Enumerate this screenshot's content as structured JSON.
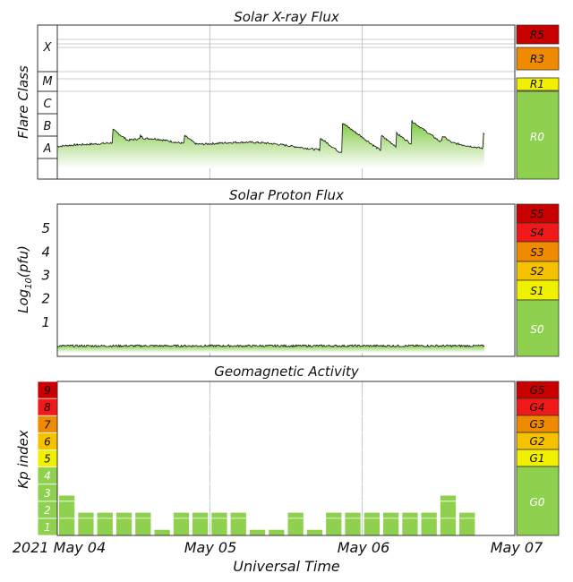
{
  "colors": {
    "green": "#8fd14f",
    "green_light": "#c8eaa6",
    "yellow": "#f0f000",
    "amber": "#f5c200",
    "orange": "#f08a00",
    "red": "#f01818",
    "darkred": "#c80000",
    "grid": "#b8b8b8",
    "frame": "#333333"
  },
  "chart_data": [
    {
      "id": "xray",
      "type": "area",
      "title": "Solar X-ray Flux",
      "ylabel": "Flare Class",
      "class_labels": [
        "X",
        "M",
        "C",
        "B",
        "A"
      ],
      "y_scale": "log10 (W/m²)",
      "ylim": [
        -8.6,
        -2.3
      ],
      "x_range_days": [
        0,
        3
      ],
      "x_data_end": 2.8,
      "baseline": -7.37,
      "events": [
        {
          "t": 0.37,
          "peak": -6.6
        },
        {
          "t": 0.55,
          "peak": -6.85
        },
        {
          "t": 0.84,
          "peak": -6.85
        },
        {
          "t": 1.73,
          "peak": -6.95
        },
        {
          "t": 1.88,
          "peak": -6.35
        },
        {
          "t": 2.13,
          "peak": -6.85
        },
        {
          "t": 2.23,
          "peak": -6.75
        },
        {
          "t": 2.33,
          "peak": -6.25
        },
        {
          "t": 2.38,
          "peak": -6.65
        },
        {
          "t": 2.53,
          "peak": -6.85
        },
        {
          "t": 2.8,
          "peak": -6.75
        }
      ],
      "scale": {
        "items": [
          {
            "label": "R5",
            "color": "#c80000"
          },
          {
            "label": "R3",
            "color": "#f08a00"
          },
          {
            "label": "R1",
            "color": "#f0f000"
          },
          {
            "label": "R0",
            "color": "#8fd14f"
          }
        ]
      }
    },
    {
      "id": "proton",
      "type": "area",
      "title": "Solar Proton Flux",
      "ylabel_main": "Log",
      "ylabel_sub": "10",
      "ylabel_unit": "(pfu)",
      "yticks": [
        1,
        2,
        3,
        4,
        5
      ],
      "ylim": [
        -0.5,
        6
      ],
      "x_range_days": [
        0,
        3
      ],
      "x_data_end": 2.8,
      "level": -0.05,
      "scale": {
        "items": [
          {
            "label": "S5",
            "color": "#c80000"
          },
          {
            "label": "S4",
            "color": "#f01818"
          },
          {
            "label": "S3",
            "color": "#f08a00"
          },
          {
            "label": "S2",
            "color": "#f5c200"
          },
          {
            "label": "S1",
            "color": "#f0f000"
          },
          {
            "label": "S0",
            "color": "#8fd14f"
          }
        ]
      }
    },
    {
      "id": "kp",
      "type": "bar",
      "title": "Geomagnetic Activity",
      "ylabel": "Kp index",
      "ylim": [
        0,
        9
      ],
      "kp_ticks": [
        "1",
        "2",
        "3",
        "4",
        "5",
        "6",
        "7",
        "8",
        "9"
      ],
      "bar_interval_hours": 3,
      "values": [
        2.33,
        1.33,
        1.33,
        1.33,
        1.33,
        0.33,
        1.33,
        1.33,
        1.33,
        1.33,
        0.33,
        0.33,
        1.33,
        0.33,
        1.33,
        1.33,
        1.33,
        1.33,
        1.33,
        1.33,
        2.33,
        1.33
      ],
      "scale": {
        "items": [
          {
            "label": "G5",
            "color": "#c80000"
          },
          {
            "label": "G4",
            "color": "#f01818"
          },
          {
            "label": "G3",
            "color": "#f08a00"
          },
          {
            "label": "G2",
            "color": "#f5c200"
          },
          {
            "label": "G1",
            "color": "#f0f000"
          },
          {
            "label": "G0",
            "color": "#8fd14f"
          }
        ]
      }
    }
  ],
  "x_axis": {
    "tick_labels": [
      "2021 May 04",
      "May 05",
      "May 06",
      "May 07"
    ],
    "xlabel": "Universal Time"
  }
}
